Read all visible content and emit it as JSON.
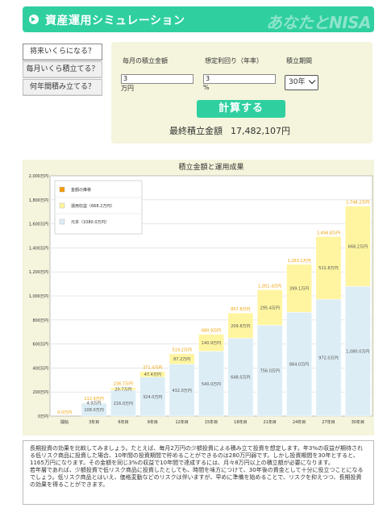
{
  "header": {
    "title": "資産運用シミュレーション",
    "logo": "あなたとNISA"
  },
  "menu": {
    "items": [
      {
        "label": "将来いくらになる？"
      },
      {
        "label": "毎月いくら積立てる？"
      },
      {
        "label": "何年間積み立てる？"
      }
    ]
  },
  "form": {
    "monthly_label": "毎月の積立金額",
    "rate_label": "想定利回り（年率）",
    "period_label": "積立期間",
    "monthly_value": "3",
    "monthly_unit": "万円",
    "rate_value": "3",
    "rate_unit": "%",
    "period_value": "30年",
    "calc_label": "計算する",
    "result_label": "最終積立金額",
    "result_value": "17,482,107円"
  },
  "chart_data": {
    "type": "bar",
    "title": "積立金額と運用成果",
    "categories": [
      "開始",
      "3年目",
      "6年目",
      "9年目",
      "12年目",
      "15年目",
      "18年目",
      "21年目",
      "24年目",
      "27年目",
      "30年目"
    ],
    "series": [
      {
        "name": "元本（1080.0万円）",
        "color": "#dcedf5",
        "values": [
          0,
          108.0,
          216.0,
          324.0,
          432.0,
          540.0,
          648.0,
          756.0,
          864.0,
          972.0,
          1080.0
        ]
      },
      {
        "name": "運用収益（668.2万円）",
        "color": "#fff5a0",
        "values": [
          0,
          4.9,
          20.7,
          47.4,
          87.2,
          140.9,
          209.8,
          295.4,
          399.1,
          522.8,
          668.2
        ]
      }
    ],
    "legend_first": "金額の推移",
    "legend_first_color": "#f29b00",
    "value_labels": {
      "principal": [
        "",
        "108.0万円",
        "216.0万円",
        "324.0万円",
        "432.0万円",
        "540.0万円",
        "648.0万円",
        "756.0万円",
        "864.0万円",
        "972.0万円",
        "1,080.0万円"
      ],
      "profit": [
        "",
        "4.9万円",
        "20.7万円",
        "47.4万円",
        "87.2万円",
        "140.9万円",
        "209.8万円",
        "295.4万円",
        "399.1万円",
        "522.8万円",
        "668.2万円"
      ],
      "total": [
        "0.0万円",
        "112.9万円",
        "236.7万円",
        "371.4万円",
        "519.2万円",
        "680.9万円",
        "857.8万円",
        "1,051.4万円",
        "1,263.1万円",
        "1,494.8万円",
        "1,748.2万円"
      ]
    },
    "ylim": [
      0,
      2000
    ],
    "ytick_step": 200,
    "ytick_labels": [
      "0万円",
      "200万円",
      "400万円",
      "600万円",
      "800万円",
      "1,000万円",
      "1,200万円",
      "1,400万円",
      "1,600万円",
      "1,800万円",
      "2,000万円"
    ],
    "legend_position": "top-left",
    "grid": true
  },
  "description": {
    "p1": "長期投資の効果を比較してみましょう。たとえば、毎月2万円の少額投資による積み立て投資を想定します。年3%の収益が期待される低リスク商品に投資した場合、10年間の投資期間で貯めることができるのは280万円弱です。しかし投資期間を30年とすると、1165万円になります。その金額を同じ3%の収益で10年間で達成するには、月々8万円以上の積立額が必要になります。",
    "p2": "若年層であれば、少額投資で低リスク商品に投資したとしても、時間を味方につけて、30年後の資金として十分に役立つことになるでしょう。低リスク商品とはいえ、価格変動などのリスクは伴いますが、早めに準備を始めることで、リスクを抑えつつ、長期投資の効果を得ることができます。"
  }
}
